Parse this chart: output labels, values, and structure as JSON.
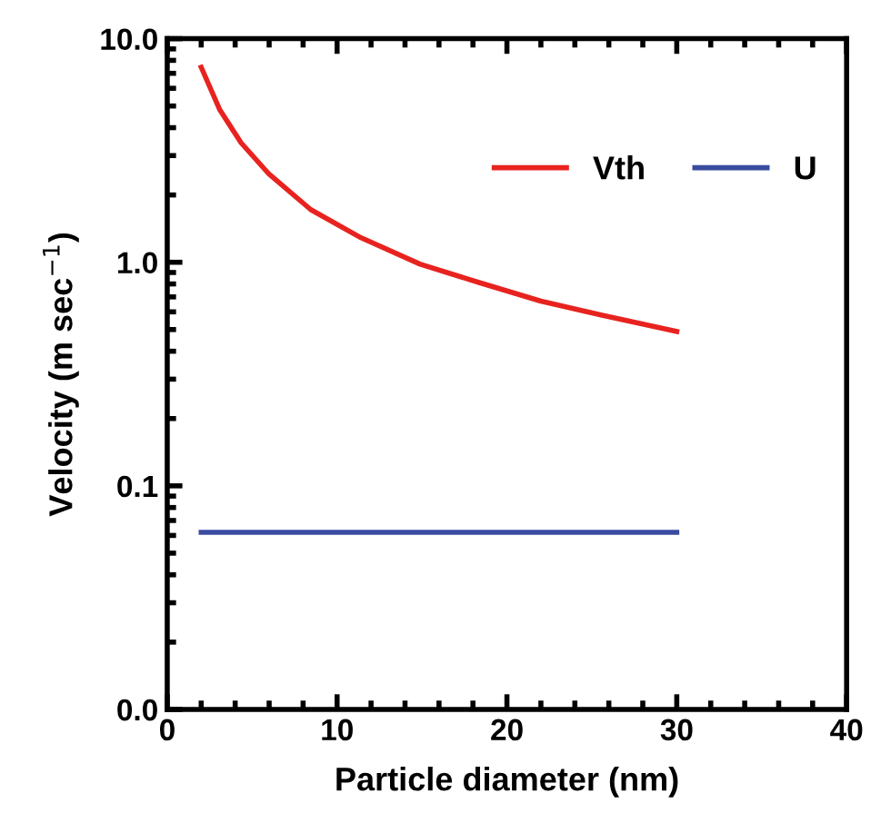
{
  "chart_data": {
    "type": "line",
    "xlabel": "Particle diameter (nm)",
    "ylabel": "Velocity (m sec$^{−1}$)",
    "log": "y",
    "xlim": [
      0,
      40
    ],
    "xticks": [
      0,
      10,
      20,
      30,
      40
    ],
    "ylim": [
      0.01,
      10
    ],
    "yticks": [
      {
        "value": 0.01,
        "label": "0.0"
      },
      {
        "value": 0.1,
        "label": "0.1"
      },
      {
        "value": 1,
        "label": "1.0"
      },
      {
        "value": 10,
        "label": "10.0"
      }
    ],
    "legend": "top right",
    "grid": false,
    "series": [
      {
        "name": "Vth",
        "color": "#e8231f",
        "x": [
          2,
          3.1,
          4.35,
          5.95,
          8.45,
          11.3,
          14.9,
          18.4,
          22,
          25.6,
          30
        ],
        "values": [
          7.45,
          4.8,
          3.42,
          2.5,
          1.72,
          1.3,
          0.98,
          0.81,
          0.67,
          0.58,
          0.49
        ]
      },
      {
        "name": "U",
        "color": "#3a4ba0",
        "x": [
          2,
          30
        ],
        "values": [
          0.062,
          0.062
        ]
      }
    ]
  }
}
